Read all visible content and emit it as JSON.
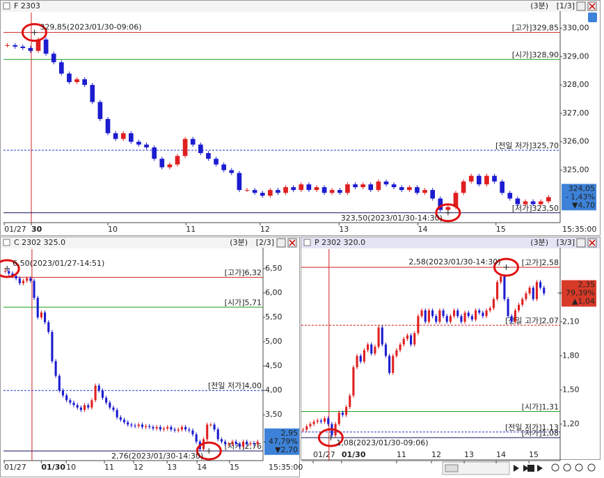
{
  "chart_data": [
    {
      "type": "candlestick",
      "title": "F 2303",
      "interval": "(3분)",
      "page": "[1/3]",
      "time": "15:35:00",
      "values": [
        329.4,
        329.35,
        329.3,
        329.2,
        329.6,
        329.1,
        328.8,
        328.4,
        328.1,
        328.2,
        328.0,
        327.4,
        326.8,
        326.3,
        326.1,
        326.3,
        326.0,
        325.9,
        325.8,
        325.4,
        325.1,
        325.2,
        325.5,
        326.1,
        325.9,
        325.6,
        325.4,
        325.2,
        325.0,
        324.9,
        324.3,
        324.3,
        324.2,
        324.1,
        324.3,
        324.2,
        324.4,
        324.3,
        324.5,
        324.3,
        324.4,
        324.2,
        324.3,
        324.2,
        324.5,
        324.4,
        324.5,
        324.3,
        324.6,
        324.5,
        324.4,
        324.3,
        324.4,
        324.2,
        324.3,
        324.0,
        323.6,
        323.7,
        324.2,
        324.6,
        324.8,
        324.5,
        324.8,
        324.6,
        324.2,
        324.0,
        323.8,
        323.9,
        323.8,
        323.9,
        324.05
      ],
      "xlim": [
        0,
        72
      ],
      "xticks": [
        {
          "value": 0.1,
          "label": "01/27"
        },
        {
          "value": 3.6,
          "label": "30",
          "bold": true
        },
        {
          "value": 13.5,
          "label": "10"
        },
        {
          "value": 23.6,
          "label": "11"
        },
        {
          "value": 33.2,
          "label": "12"
        },
        {
          "value": 43.4,
          "label": "13"
        },
        {
          "value": 53.6,
          "label": "14"
        },
        {
          "value": 63.7,
          "label": "15"
        }
      ],
      "ylim": [
        323.2,
        330.55
      ],
      "yticks": [
        {
          "value": 325,
          "label": "325,00"
        },
        {
          "value": 326,
          "label": "326,00"
        },
        {
          "value": 327,
          "label": "327,00"
        },
        {
          "value": 328,
          "label": "328,00"
        },
        {
          "value": 329,
          "label": "329,00"
        },
        {
          "value": 330,
          "label": "330,00"
        }
      ],
      "up_color": "#e02020",
      "down_color": "#1c1cd0",
      "vline": 3.6,
      "levels": [
        {
          "label": "[고가]329,85",
          "value": 329.85,
          "color": "#d02020",
          "dash": false
        },
        {
          "label": "[시가]328,90",
          "value": 328.9,
          "color": "#20a020",
          "dash": false
        },
        {
          "label": "[전일 저가]325,70",
          "value": 325.7,
          "color": "#2030c0",
          "dash": true
        },
        {
          "label": "[저가]323,50",
          "value": 323.5,
          "color": "#10105a",
          "dash": false
        }
      ],
      "high": {
        "label": "329,85(2023/01/30-09:06)",
        "value": 329.85,
        "x": 4.0,
        "anchor": "start"
      },
      "low": {
        "label": "323,50(2023/01/30-14:30)",
        "value": 323.5,
        "x": 57.5,
        "anchor": "end"
      },
      "current": {
        "value": 324.05,
        "label": "324,05",
        "change": "- 1,43%",
        "diff": "▼4,70",
        "color": "#3d82d8"
      }
    },
    {
      "type": "candlestick",
      "title": "C 2302 325.0",
      "interval": "(3분)",
      "page": "[2/3]",
      "time": "15:35:00",
      "values": [
        6.45,
        6.4,
        6.35,
        6.3,
        6.2,
        6.25,
        6.3,
        6.25,
        5.9,
        5.5,
        5.6,
        5.4,
        5.2,
        4.6,
        4.3,
        4.0,
        3.9,
        3.8,
        3.75,
        3.7,
        3.65,
        3.6,
        3.7,
        3.65,
        3.8,
        4.1,
        4.0,
        3.85,
        3.75,
        3.65,
        3.6,
        3.45,
        3.4,
        3.35,
        3.3,
        3.28,
        3.27,
        3.3,
        3.25,
        3.27,
        3.25,
        3.22,
        3.25,
        3.2,
        3.22,
        3.25,
        3.2,
        3.18,
        3.2,
        3.25,
        3.2,
        3.18,
        3.1,
        2.95,
        2.8,
        3.0,
        3.3,
        3.3,
        3.2,
        3.0,
        2.95,
        2.9,
        2.9,
        2.95,
        2.9,
        2.85,
        2.95,
        2.9,
        2.92,
        2.9,
        2.95
      ],
      "xlim": [
        0,
        72
      ],
      "xticks": [
        {
          "value": 0.2,
          "label": "01/27"
        },
        {
          "value": 10.5,
          "label": "01/30",
          "bold": true
        },
        {
          "value": 17.4,
          "label": "10"
        },
        {
          "value": 28,
          "label": "11"
        },
        {
          "value": 36.1,
          "label": "12"
        },
        {
          "value": 45.4,
          "label": "13"
        },
        {
          "value": 53.7,
          "label": "14"
        },
        {
          "value": 62.7,
          "label": "15"
        }
      ],
      "ylim": [
        2.59,
        6.9
      ],
      "yticks": [
        {
          "value": 3.5,
          "label": "3,50"
        },
        {
          "value": 4,
          "label": "4,00"
        },
        {
          "value": 4.5,
          "label": "4,50"
        },
        {
          "value": 5,
          "label": "5,00"
        },
        {
          "value": 5.5,
          "label": "5,50"
        },
        {
          "value": 6,
          "label": "6,00"
        },
        {
          "value": 6.5,
          "label": "6,50"
        }
      ],
      "up_color": "#e02020",
      "down_color": "#1c1cd0",
      "vline": 7.9,
      "levels": [
        {
          "label": "[고가]6,32",
          "value": 6.32,
          "color": "#d02020",
          "dash": false
        },
        {
          "label": "[시가]5,71",
          "value": 5.71,
          "color": "#20a020",
          "dash": false
        },
        {
          "label": "[전일 저가]4,00",
          "value": 4.0,
          "color": "#2030c0",
          "dash": true
        },
        {
          "label": "[저가]2,76",
          "value": 2.76,
          "color": "#10105a",
          "dash": false
        }
      ],
      "high": {
        "label": "6,50(2023/01/27-14:51)",
        "value": 6.5,
        "x": 1.0,
        "anchor": "start"
      },
      "low": {
        "label": "2,76(2023/01/30-14:30)",
        "value": 2.76,
        "x": 57.0,
        "anchor": "end"
      },
      "current": {
        "value": 2.95,
        "label": "2,95",
        "change": "- 47,79%",
        "diff": "▼2,70",
        "color": "#3d82d8"
      }
    },
    {
      "type": "candlestick",
      "title": "P 2302 320.0",
      "interval": "(3분)",
      "page": "[3/3]",
      "values": [
        1.15,
        1.18,
        1.2,
        1.22,
        1.23,
        1.22,
        1.25,
        1.2,
        1.1,
        1.2,
        1.3,
        1.28,
        1.35,
        1.45,
        1.7,
        1.8,
        1.75,
        1.85,
        1.9,
        1.82,
        1.88,
        2.05,
        1.9,
        1.8,
        1.65,
        1.8,
        1.85,
        1.9,
        1.95,
        1.98,
        1.9,
        2.0,
        2.15,
        2.2,
        2.1,
        2.2,
        2.15,
        2.1,
        2.2,
        2.15,
        2.1,
        2.15,
        2.2,
        2.15,
        2.1,
        2.18,
        2.15,
        2.12,
        2.2,
        2.18,
        2.15,
        2.2,
        2.22,
        2.3,
        2.45,
        2.5,
        2.3,
        2.15,
        2.1,
        2.2,
        2.25,
        2.3,
        2.35,
        2.4,
        2.3,
        2.45,
        2.4,
        2.35
      ],
      "xlim": [
        0,
        72
      ],
      "xticks": [
        {
          "value": 3.3,
          "label": "01/27"
        },
        {
          "value": 11.2,
          "label": "01/30",
          "bold": true
        },
        {
          "value": 26.5,
          "label": "11"
        },
        {
          "value": 36.2,
          "label": "12"
        },
        {
          "value": 45.3,
          "label": "13"
        },
        {
          "value": 54.2,
          "label": "14"
        },
        {
          "value": 63.3,
          "label": "15"
        }
      ],
      "ylim": [
        0.89,
        2.74
      ],
      "yticks": [
        {
          "value": 1.2,
          "label": "1,20"
        },
        {
          "value": 1.5,
          "label": "1,50"
        },
        {
          "value": 1.8,
          "label": "1,80"
        },
        {
          "value": 2.1,
          "label": "2,10"
        }
      ],
      "up_color": "#e02020",
      "down_color": "#1c1cd0",
      "vline": 7.7,
      "levels": [
        {
          "label": "[고가]2,58",
          "value": 2.58,
          "color": "#d02020",
          "dash": false
        },
        {
          "label": "[전일 고가]2,07",
          "value": 2.07,
          "color": "#d02020",
          "dash": true
        },
        {
          "label": "[시가]1,31",
          "value": 1.31,
          "color": "#20a020",
          "dash": false
        },
        {
          "label": "[전일 저가]1,13",
          "value": 1.13,
          "color": "#2030c0",
          "dash": true
        },
        {
          "label": "[저가]1,08",
          "value": 1.08,
          "color": "#10105a",
          "dash": false
        }
      ],
      "high": {
        "label": "2,58(2023/01/30-14:30)",
        "value": 2.58,
        "x": 57.0,
        "anchor": "end"
      },
      "low": {
        "label": "1,08(2023/01/30-09:06)",
        "value": 1.08,
        "x": 8.2,
        "anchor": "start"
      },
      "current": {
        "value": 2.35,
        "label": "2,35",
        "change": "+ 79,39%",
        "diff": "▲1,04",
        "color": "#d83a28"
      }
    }
  ]
}
